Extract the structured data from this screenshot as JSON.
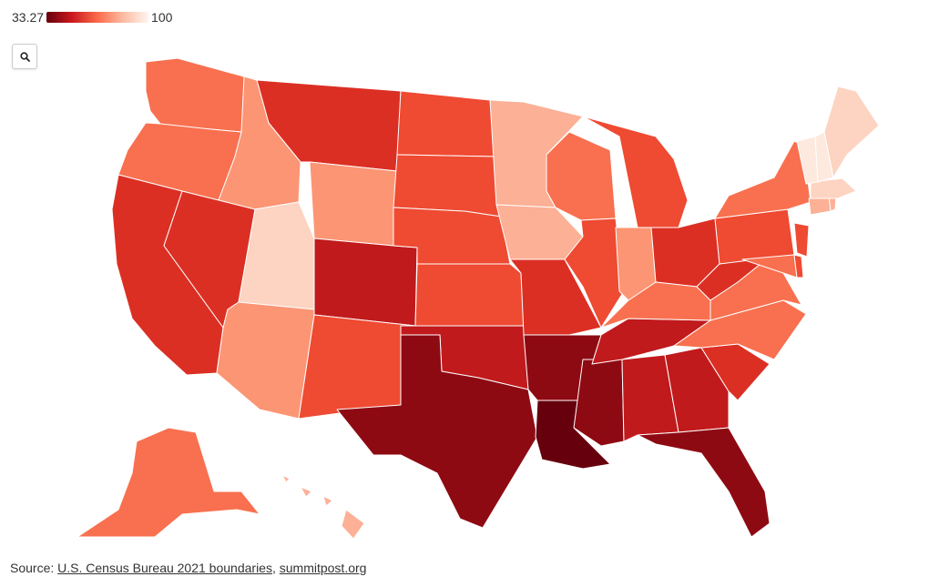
{
  "legend": {
    "min": "33.27",
    "max": "100",
    "scale_colors": [
      "#67000d",
      "#cb181d",
      "#fb6a4a",
      "#fcbba1",
      "#fff5f0"
    ]
  },
  "zoom_button": {
    "icon": "search-icon"
  },
  "source": {
    "label": "Source:",
    "link1": "U.S. Census Bureau 2021 boundaries",
    "separator": ",",
    "link2": "summitpost.org"
  },
  "colors": {
    "darkest": "#67000d",
    "very_dark": "#8e0a13",
    "dark": "#c11a1c",
    "medium_dark": "#dc2f24",
    "medium": "#ef4a32",
    "medium_light": "#f8704f",
    "light": "#fc9574",
    "lighter": "#fcb095",
    "very_light": "#fdd3c1",
    "palest": "#fee9df"
  }
}
